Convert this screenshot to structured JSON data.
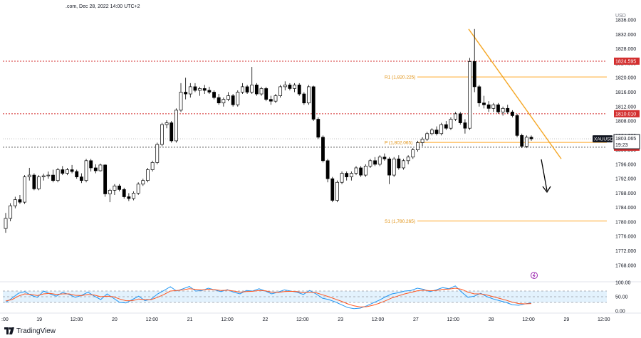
{
  "header": {
    "caption": ".com, Dec 28, 2022 14:00 UTC+2"
  },
  "footer": {
    "brand": "TradingView"
  },
  "colors": {
    "up_candle": "#ffffff",
    "down_candle": "#000000",
    "candle_wick": "#000000",
    "resistance_line": "#d32f2f",
    "pivot_line": "#ffa726",
    "trendline": "#f5a623",
    "rsi_fast": "#2196f3",
    "rsi_slow": "#ff5722",
    "rsi_band": "#e3f2fd",
    "price_label_bg": "#131722",
    "alert_icon": "#9c27b0"
  },
  "chart_data": {
    "type": "candlestick",
    "symbol": "XAUUSD",
    "y_unit_label": "USD",
    "ylim": [
      1765,
      1838
    ],
    "yticks": [
      "1836.000",
      "1832.000",
      "1828.000",
      "1824.000",
      "1820.000",
      "1816.000",
      "1812.000",
      "1808.000",
      "1804.000",
      "1800.000",
      "1796.000",
      "1792.000",
      "1788.000",
      "1784.000",
      "1780.000",
      "1776.000",
      "1772.000",
      "1768.000"
    ],
    "x_labels": [
      ":00",
      "19",
      "12:00",
      "20",
      "12:00",
      "21",
      "12:00",
      "22",
      "12:00",
      "23",
      "12:00",
      "27",
      "12:00",
      "28",
      "12:00",
      "29",
      "12:00"
    ],
    "horizontal_levels": [
      {
        "label": "1824.595",
        "value": 1824.595,
        "style": "red-dotted",
        "tag": true
      },
      {
        "label": "1810.010",
        "value": 1810.01,
        "style": "red-dotted",
        "tag": true
      },
      {
        "label": "1800.735",
        "value": 1800.735,
        "style": "dark-dotted",
        "tag": true
      },
      {
        "label": "R1 (1,820.225)",
        "value": 1820.225,
        "style": "pivot"
      },
      {
        "label": "P (1,802.065)",
        "value": 1802.065,
        "style": "pivot"
      },
      {
        "label": "S1 (1,780.265)",
        "value": 1780.265,
        "style": "pivot"
      }
    ],
    "current_price": {
      "value": 1803.065,
      "label": "1803.065",
      "countdown": "19:23"
    },
    "trendline": {
      "from": [
        0,
        1833.5
      ],
      "to": [
        1,
        1797.5
      ]
    },
    "ohlc": [
      [
        1778.2,
        1782.5,
        1777.0,
        1781.0
      ],
      [
        1781.0,
        1785.2,
        1780.2,
        1784.5
      ],
      [
        1784.5,
        1787.0,
        1783.8,
        1786.2
      ],
      [
        1786.2,
        1787.5,
        1785.0,
        1785.5
      ],
      [
        1785.5,
        1793.0,
        1785.0,
        1792.5
      ],
      [
        1792.5,
        1795.0,
        1791.5,
        1793.0
      ],
      [
        1793.0,
        1793.5,
        1788.8,
        1789.2
      ],
      [
        1789.2,
        1793.0,
        1788.8,
        1792.5
      ],
      [
        1792.5,
        1793.4,
        1791.5,
        1792.8
      ],
      [
        1792.8,
        1794.0,
        1792.0,
        1793.0
      ],
      [
        1793.0,
        1794.5,
        1791.0,
        1791.5
      ],
      [
        1791.5,
        1795.0,
        1791.0,
        1794.5
      ],
      [
        1794.5,
        1795.5,
        1793.0,
        1793.5
      ],
      [
        1793.5,
        1795.0,
        1793.0,
        1794.5
      ],
      [
        1794.5,
        1795.8,
        1793.5,
        1794.0
      ],
      [
        1794.0,
        1794.5,
        1792.0,
        1792.5
      ],
      [
        1792.5,
        1793.5,
        1790.8,
        1791.5
      ],
      [
        1791.5,
        1797.5,
        1791.0,
        1797.0
      ],
      [
        1797.0,
        1797.5,
        1794.0,
        1795.0
      ],
      [
        1795.0,
        1796.0,
        1793.5,
        1794.2
      ],
      [
        1794.2,
        1796.2,
        1794.0,
        1795.8
      ],
      [
        1795.8,
        1796.0,
        1787.0,
        1787.8
      ],
      [
        1787.8,
        1789.2,
        1785.5,
        1788.8
      ],
      [
        1788.8,
        1790.5,
        1787.5,
        1790.0
      ],
      [
        1790.0,
        1790.5,
        1788.5,
        1789.0
      ],
      [
        1789.0,
        1789.5,
        1786.5,
        1787.0
      ],
      [
        1787.0,
        1788.0,
        1785.8,
        1786.5
      ],
      [
        1786.5,
        1788.5,
        1786.0,
        1788.0
      ],
      [
        1788.0,
        1791.0,
        1787.5,
        1790.5
      ],
      [
        1790.5,
        1792.0,
        1790.0,
        1791.5
      ],
      [
        1791.5,
        1795.0,
        1791.0,
        1794.5
      ],
      [
        1794.5,
        1797.0,
        1794.0,
        1796.5
      ],
      [
        1796.5,
        1802.0,
        1796.0,
        1801.5
      ],
      [
        1801.5,
        1807.5,
        1801.0,
        1807.0
      ],
      [
        1807.0,
        1808.2,
        1806.0,
        1807.5
      ],
      [
        1807.5,
        1808.0,
        1802.0,
        1802.5
      ],
      [
        1802.5,
        1811.5,
        1802.0,
        1811.0
      ],
      [
        1811.0,
        1818.5,
        1810.5,
        1816.0
      ],
      [
        1816.0,
        1820.0,
        1814.0,
        1815.5
      ],
      [
        1815.5,
        1818.5,
        1814.5,
        1817.5
      ],
      [
        1817.5,
        1818.5,
        1816.0,
        1816.5
      ],
      [
        1816.5,
        1817.5,
        1815.0,
        1817.0
      ],
      [
        1817.0,
        1818.0,
        1815.5,
        1816.5
      ],
      [
        1816.5,
        1817.5,
        1815.5,
        1816.0
      ],
      [
        1816.0,
        1816.5,
        1814.0,
        1814.5
      ],
      [
        1814.5,
        1815.5,
        1812.5,
        1813.0
      ],
      [
        1813.0,
        1814.5,
        1812.0,
        1814.0
      ],
      [
        1814.0,
        1816.0,
        1813.5,
        1815.0
      ],
      [
        1815.0,
        1815.5,
        1812.0,
        1812.5
      ],
      [
        1812.5,
        1816.5,
        1812.0,
        1816.0
      ],
      [
        1816.0,
        1818.5,
        1815.5,
        1817.5
      ],
      [
        1817.5,
        1818.0,
        1815.5,
        1816.0
      ],
      [
        1816.0,
        1823.0,
        1815.5,
        1818.0
      ],
      [
        1818.0,
        1818.5,
        1815.0,
        1815.5
      ],
      [
        1815.5,
        1817.5,
        1815.0,
        1817.0
      ],
      [
        1817.0,
        1817.5,
        1813.5,
        1814.0
      ],
      [
        1814.0,
        1815.0,
        1812.5,
        1813.5
      ],
      [
        1813.5,
        1815.5,
        1813.0,
        1815.0
      ],
      [
        1815.0,
        1818.0,
        1814.5,
        1817.5
      ],
      [
        1817.5,
        1819.0,
        1816.5,
        1818.0
      ],
      [
        1818.0,
        1818.5,
        1816.5,
        1817.0
      ],
      [
        1817.0,
        1818.5,
        1816.0,
        1818.0
      ],
      [
        1818.0,
        1818.5,
        1815.0,
        1815.5
      ],
      [
        1815.5,
        1816.0,
        1812.5,
        1813.0
      ],
      [
        1813.0,
        1818.0,
        1812.5,
        1817.5
      ],
      [
        1817.5,
        1817.8,
        1808.0,
        1808.5
      ],
      [
        1808.5,
        1809.0,
        1803.0,
        1803.5
      ],
      [
        1803.5,
        1804.0,
        1796.5,
        1797.0
      ],
      [
        1797.0,
        1797.5,
        1791.0,
        1792.0
      ],
      [
        1792.0,
        1792.5,
        1785.5,
        1786.0
      ],
      [
        1786.0,
        1791.5,
        1785.5,
        1791.0
      ],
      [
        1791.0,
        1794.0,
        1790.5,
        1793.5
      ],
      [
        1793.5,
        1794.0,
        1791.5,
        1792.5
      ],
      [
        1792.5,
        1794.0,
        1791.5,
        1793.5
      ],
      [
        1793.5,
        1795.5,
        1793.0,
        1795.0
      ],
      [
        1795.0,
        1795.5,
        1792.5,
        1793.0
      ],
      [
        1793.0,
        1796.0,
        1792.5,
        1795.5
      ],
      [
        1795.5,
        1797.5,
        1795.0,
        1797.0
      ],
      [
        1797.0,
        1798.0,
        1795.5,
        1796.0
      ],
      [
        1796.0,
        1798.5,
        1795.5,
        1798.0
      ],
      [
        1798.0,
        1799.0,
        1797.0,
        1797.5
      ],
      [
        1797.5,
        1798.0,
        1790.5,
        1793.0
      ],
      [
        1793.0,
        1798.0,
        1792.5,
        1797.5
      ],
      [
        1797.5,
        1798.5,
        1794.5,
        1795.0
      ],
      [
        1795.0,
        1797.5,
        1794.5,
        1797.0
      ],
      [
        1797.0,
        1798.5,
        1796.0,
        1798.0
      ],
      [
        1798.0,
        1800.5,
        1797.5,
        1800.0
      ],
      [
        1800.0,
        1802.5,
        1799.5,
        1802.0
      ],
      [
        1802.0,
        1803.5,
        1801.0,
        1803.0
      ],
      [
        1803.0,
        1805.0,
        1802.5,
        1804.5
      ],
      [
        1804.5,
        1806.0,
        1804.0,
        1805.5
      ],
      [
        1805.5,
        1806.5,
        1804.0,
        1804.5
      ],
      [
        1804.5,
        1807.5,
        1804.0,
        1807.0
      ],
      [
        1807.0,
        1808.0,
        1805.5,
        1806.0
      ],
      [
        1806.0,
        1809.0,
        1805.5,
        1808.5
      ],
      [
        1808.5,
        1810.5,
        1808.0,
        1810.0
      ],
      [
        1810.0,
        1810.5,
        1807.0,
        1807.5
      ],
      [
        1807.5,
        1808.5,
        1804.5,
        1806.0
      ],
      [
        1806.0,
        1825.5,
        1805.5,
        1824.5
      ],
      [
        1824.5,
        1833.5,
        1816.0,
        1817.5
      ],
      [
        1817.5,
        1818.0,
        1812.0,
        1813.0
      ],
      [
        1813.0,
        1815.0,
        1811.5,
        1812.5
      ],
      [
        1812.5,
        1813.5,
        1810.5,
        1811.5
      ],
      [
        1811.5,
        1813.0,
        1810.5,
        1812.5
      ],
      [
        1812.5,
        1813.0,
        1810.0,
        1810.5
      ],
      [
        1810.5,
        1812.0,
        1809.5,
        1811.5
      ],
      [
        1811.5,
        1812.5,
        1810.0,
        1810.5
      ],
      [
        1810.5,
        1811.0,
        1809.0,
        1809.5
      ],
      [
        1809.5,
        1810.0,
        1803.5,
        1804.0
      ],
      [
        1804.0,
        1804.5,
        1800.5,
        1801.0
      ],
      [
        1801.0,
        1804.0,
        1800.5,
        1803.5
      ],
      [
        1803.5,
        1804.0,
        1802.5,
        1803.065
      ]
    ],
    "rsi_panel": {
      "ylim": [
        0,
        100
      ],
      "yticks": [
        "100.00",
        "50.00",
        "0.00"
      ],
      "band": [
        30,
        70
      ],
      "series": [
        {
          "role": "fast",
          "values": [
            30,
            45,
            62,
            68,
            55,
            48,
            70,
            60,
            52,
            65,
            58,
            48,
            55,
            66,
            52,
            40,
            60,
            45,
            30,
            28,
            40,
            52,
            36,
            42,
            60,
            72,
            85,
            70,
            78,
            86,
            70,
            72,
            80,
            74,
            68,
            75,
            66,
            60,
            72,
            70,
            78,
            70,
            60,
            66,
            74,
            70,
            66,
            58,
            72,
            60,
            45,
            40,
            32,
            22,
            12,
            8,
            10,
            18,
            28,
            38,
            50,
            60,
            64,
            70,
            72,
            80,
            76,
            68,
            74,
            82,
            78,
            88,
            66,
            48,
            52,
            62,
            50,
            42,
            36,
            30,
            22,
            20,
            25,
            28
          ]
        },
        {
          "role": "slow",
          "values": [
            35,
            40,
            52,
            60,
            58,
            54,
            60,
            62,
            58,
            60,
            60,
            55,
            54,
            58,
            56,
            50,
            52,
            50,
            42,
            36,
            36,
            42,
            40,
            40,
            48,
            58,
            70,
            72,
            74,
            78,
            76,
            74,
            76,
            75,
            72,
            73,
            70,
            66,
            68,
            69,
            72,
            71,
            66,
            65,
            68,
            69,
            68,
            64,
            66,
            64,
            57,
            50,
            42,
            34,
            25,
            18,
            14,
            15,
            20,
            27,
            36,
            46,
            53,
            60,
            65,
            71,
            73,
            71,
            72,
            76,
            77,
            80,
            76,
            66,
            60,
            60,
            56,
            50,
            44,
            38,
            31,
            26,
            25,
            26
          ]
        }
      ]
    }
  }
}
